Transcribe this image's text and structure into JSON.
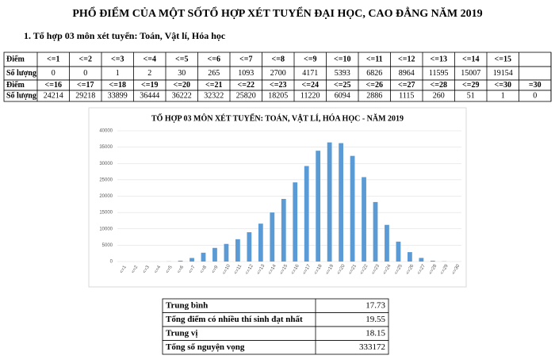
{
  "header": {
    "title": "PHỔ ĐIỂM CỦA MỘT SỐTỔ HỢP XÉT TUYỂN ĐẠI HỌC, CAO ĐẲNG NĂM 2019",
    "section": "1. Tổ hợp 03 môn xét tuyển: Toán, Vật lí, Hóa học"
  },
  "score_table": {
    "score_label": "Điểm",
    "count_label": "Số lượng",
    "scores": [
      "<=1",
      "<=2",
      "<=3",
      "<=4",
      "<=5",
      "<=6",
      "<=7",
      "<=8",
      "<=9",
      "<=10",
      "<=11",
      "<=12",
      "<=13",
      "<=14",
      "<=15",
      "<=16",
      "<=17",
      "<=18",
      "<=19",
      "<=20",
      "<=21",
      "<=22",
      "<=23",
      "<=24",
      "<=25",
      "<=26",
      "<=27",
      "<=28",
      "<=29",
      "<=30",
      "=30"
    ],
    "counts": [
      0,
      0,
      1,
      2,
      30,
      265,
      1093,
      2700,
      4171,
      5393,
      6826,
      8964,
      11595,
      15007,
      19154,
      24214,
      29218,
      33899,
      36444,
      36222,
      32322,
      25820,
      18205,
      11220,
      6094,
      2886,
      1115,
      260,
      51,
      1,
      0
    ]
  },
  "chart_data": {
    "type": "bar",
    "title": "TỔ HỢP 03 MÔN XÉT TUYỂN: TOÁN, VẬT LÍ, HÓA HỌC - NĂM 2019",
    "categories": [
      "<=1",
      "<=2",
      "<=3",
      "<=4",
      "<=5",
      "<=6",
      "<=7",
      "<=8",
      "<=9",
      "<=10",
      "<=11",
      "<=12",
      "<=13",
      "<=14",
      "<=15",
      "<=16",
      "<=17",
      "<=18",
      "<=19",
      "<=20",
      "<=21",
      "<=22",
      "<=23",
      "<=24",
      "<=25",
      "<=26",
      "<=27",
      "<=28",
      "<=29",
      "<=30"
    ],
    "values": [
      0,
      0,
      1,
      2,
      30,
      265,
      1093,
      2700,
      4171,
      5393,
      6826,
      8964,
      11595,
      15007,
      19154,
      24214,
      29218,
      33899,
      36444,
      36222,
      32322,
      25820,
      18205,
      11220,
      6094,
      2886,
      1115,
      260,
      51,
      1
    ],
    "color": "#5b9bd5",
    "ylim": [
      0,
      40000
    ],
    "yticks": [
      0,
      5000,
      10000,
      15000,
      20000,
      25000,
      30000,
      35000,
      40000
    ],
    "grid": true
  },
  "summary": {
    "rows": [
      [
        "Trung bình",
        17.73
      ],
      [
        "Tổng điểm có nhiều thí sinh đạt nhất",
        19.55
      ],
      [
        "Trung vị",
        18.15
      ],
      [
        "Tổng số nguyện vọng",
        333172
      ]
    ]
  }
}
